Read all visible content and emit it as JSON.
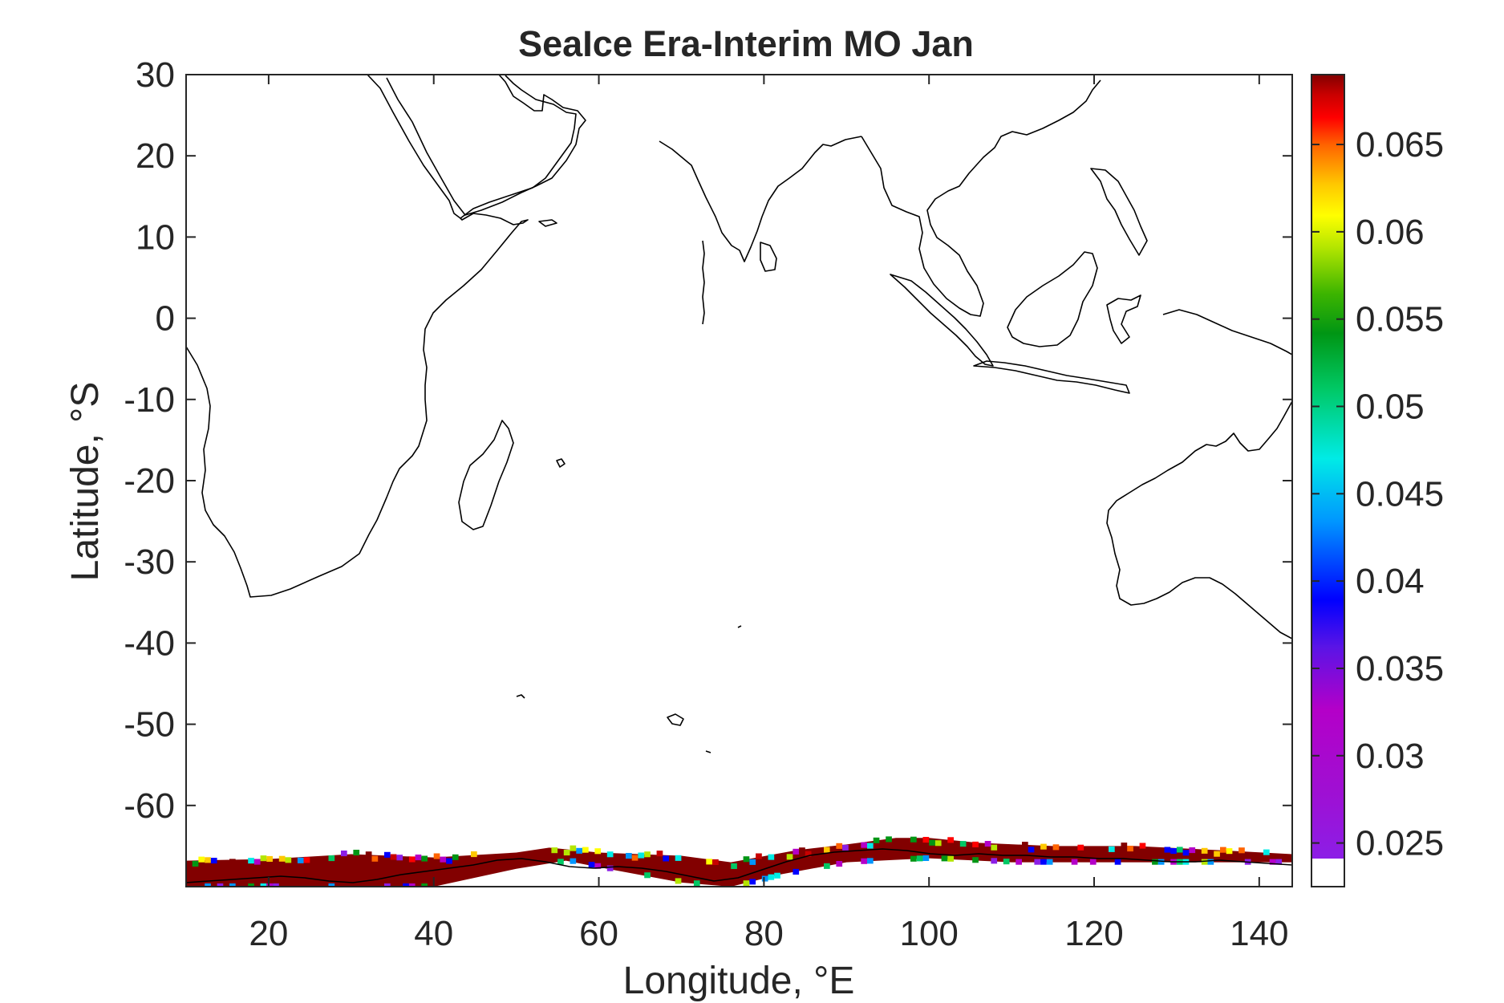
{
  "chart_data": {
    "type": "heatmap",
    "title": "SeaIce Era-Interim MO Jan",
    "xlabel": "Longitude, °E",
    "ylabel": "Latitude, °S",
    "xlim": [
      10,
      144
    ],
    "ylim": [
      -70,
      30
    ],
    "xticks": [
      20,
      40,
      60,
      80,
      100,
      120,
      140
    ],
    "yticks": [
      30,
      20,
      10,
      0,
      -10,
      -20,
      -30,
      -40,
      -50,
      -60
    ],
    "colorbar": {
      "colormap": "jet-like (purple to dark red)",
      "range": [
        0.0225,
        0.069
      ],
      "ticks": [
        "0.065",
        "0.06",
        "0.055",
        "0.05",
        "0.045",
        "0.04",
        "0.035",
        "0.03",
        "0.025"
      ],
      "tick_values": [
        0.065,
        0.06,
        0.055,
        0.05,
        0.045,
        0.04,
        0.035,
        0.03,
        0.025
      ]
    },
    "field": {
      "description": "sea ice field concentrated along the Antarctic coast, mostly at the maximum colour (dark red) with mixed-colour edge cells",
      "northern_edge": [
        {
          "lon": 10,
          "lat": -66.8
        },
        {
          "lon": 20,
          "lat": -66.6
        },
        {
          "lon": 30,
          "lat": -66.0
        },
        {
          "lon": 40,
          "lat": -66.4
        },
        {
          "lon": 50,
          "lat": -65.8
        },
        {
          "lon": 54,
          "lat": -65.2
        },
        {
          "lon": 60,
          "lat": -65.8
        },
        {
          "lon": 70,
          "lat": -66.2
        },
        {
          "lon": 76,
          "lat": -67.0
        },
        {
          "lon": 84,
          "lat": -65.5
        },
        {
          "lon": 90,
          "lat": -64.8
        },
        {
          "lon": 96,
          "lat": -64.0
        },
        {
          "lon": 100,
          "lat": -64.0
        },
        {
          "lon": 106,
          "lat": -64.6
        },
        {
          "lon": 115,
          "lat": -65.0
        },
        {
          "lon": 125,
          "lat": -65.0
        },
        {
          "lon": 135,
          "lat": -65.5
        },
        {
          "lon": 144,
          "lat": -66.0
        }
      ],
      "southern_edge": [
        {
          "lon": 10,
          "lat": -70.0
        },
        {
          "lon": 40,
          "lat": -70.0
        },
        {
          "lon": 50,
          "lat": -67.8
        },
        {
          "lon": 56,
          "lat": -66.8
        },
        {
          "lon": 60,
          "lat": -67.6
        },
        {
          "lon": 70,
          "lat": -69.5
        },
        {
          "lon": 76,
          "lat": -70.0
        },
        {
          "lon": 82,
          "lat": -68.5
        },
        {
          "lon": 90,
          "lat": -67.0
        },
        {
          "lon": 100,
          "lat": -66.5
        },
        {
          "lon": 110,
          "lat": -67.0
        },
        {
          "lon": 120,
          "lat": -67.0
        },
        {
          "lon": 130,
          "lat": -67.0
        },
        {
          "lon": 144,
          "lat": -67.0
        }
      ]
    }
  }
}
